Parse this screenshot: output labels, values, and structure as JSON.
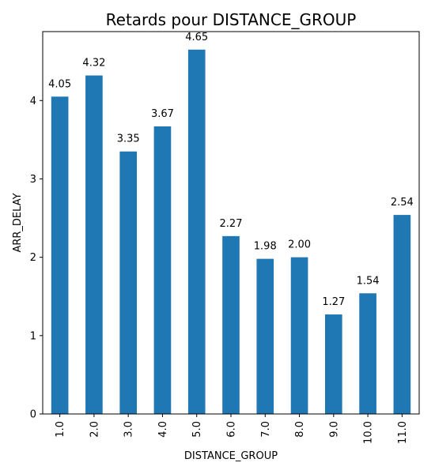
{
  "chart_data": {
    "type": "bar",
    "title": "Retards pour DISTANCE_GROUP",
    "xlabel": "DISTANCE_GROUP",
    "ylabel": "ARR_DELAY",
    "categories": [
      "1.0",
      "2.0",
      "3.0",
      "4.0",
      "5.0",
      "6.0",
      "7.0",
      "8.0",
      "9.0",
      "10.0",
      "11.0"
    ],
    "values": [
      4.05,
      4.32,
      3.35,
      3.67,
      4.65,
      2.27,
      1.98,
      2.0,
      1.27,
      1.54,
      2.54
    ],
    "data_labels": [
      "4.05",
      "4.32",
      "3.35",
      "3.67",
      "4.65",
      "2.27",
      "1.98",
      "2.00",
      "1.27",
      "1.54",
      "2.54"
    ],
    "ylim": [
      0,
      4.88
    ],
    "yticks": [
      0,
      1,
      2,
      3,
      4
    ],
    "bar_color": "#1f77b4",
    "grid": false,
    "legend": "none"
  }
}
